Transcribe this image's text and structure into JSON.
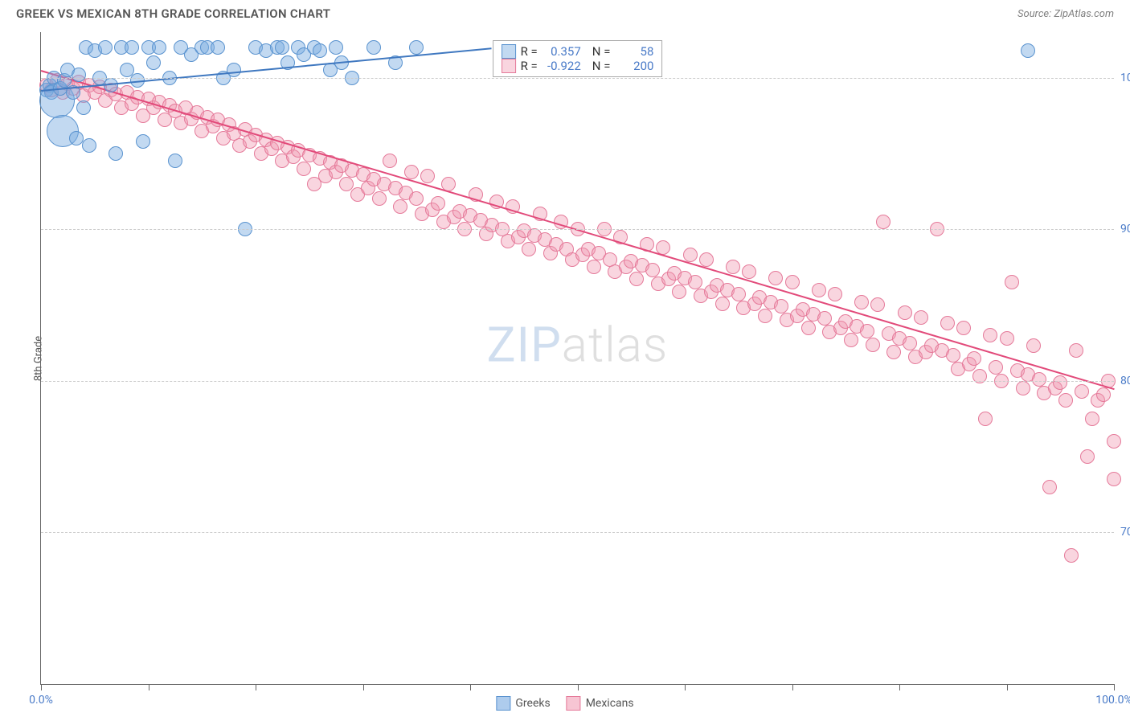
{
  "header": {
    "title": "GREEK VS MEXICAN 8TH GRADE CORRELATION CHART",
    "source_prefix": "Source: ",
    "source": "ZipAtlas.com"
  },
  "ylabel": "8th Grade",
  "watermark": {
    "part1": "ZIP",
    "part2": "atlas"
  },
  "chart": {
    "type": "scatter",
    "xlim": [
      0,
      100
    ],
    "ylim": [
      60,
      103
    ],
    "y_ticks": [
      70,
      80,
      90,
      100
    ],
    "y_tick_labels": [
      "70.0%",
      "80.0%",
      "90.0%",
      "100.0%"
    ],
    "x_ticks": [
      0,
      10,
      20,
      30,
      40,
      50,
      60,
      70,
      80,
      90,
      100
    ],
    "x_tick_labels": {
      "0": "0.0%",
      "100": "100.0%"
    },
    "grid_color": "#cccccc",
    "background_color": "#ffffff",
    "series": [
      {
        "name": "Greeks",
        "fill": "rgba(120,170,225,0.45)",
        "stroke": "#5a93cf",
        "marker_radius": 9,
        "trend": {
          "x1": 0,
          "y1": 99.2,
          "x2": 42,
          "y2": 102.0,
          "color": "#3f78c0",
          "width": 2
        },
        "stats": {
          "R": "0.357",
          "N": "58"
        },
        "points": [
          [
            0.5,
            99.2
          ],
          [
            0.8,
            99.5
          ],
          [
            1.0,
            99.0
          ],
          [
            1.2,
            100.0
          ],
          [
            1.5,
            98.5,
            22
          ],
          [
            1.8,
            99.3
          ],
          [
            2.0,
            96.5,
            20
          ],
          [
            2.2,
            99.8
          ],
          [
            2.5,
            100.5
          ],
          [
            3.0,
            99.0
          ],
          [
            3.3,
            96.0
          ],
          [
            3.5,
            100.2
          ],
          [
            4.0,
            98.0
          ],
          [
            4.2,
            102.0
          ],
          [
            4.5,
            95.5
          ],
          [
            5.0,
            101.8
          ],
          [
            5.5,
            100.0
          ],
          [
            6.0,
            102.0
          ],
          [
            6.5,
            99.5
          ],
          [
            7.0,
            95.0
          ],
          [
            7.5,
            102.0
          ],
          [
            8.0,
            100.5
          ],
          [
            8.5,
            102.0
          ],
          [
            9.0,
            99.8
          ],
          [
            9.5,
            95.8
          ],
          [
            10.0,
            102.0
          ],
          [
            10.5,
            101.0
          ],
          [
            11.0,
            102.0
          ],
          [
            12.0,
            100.0
          ],
          [
            12.5,
            94.5
          ],
          [
            13.0,
            102.0
          ],
          [
            14.0,
            101.5
          ],
          [
            15.0,
            102.0
          ],
          [
            15.5,
            102.0
          ],
          [
            16.5,
            102.0
          ],
          [
            17.0,
            100.0
          ],
          [
            18.0,
            100.5
          ],
          [
            19.0,
            90.0
          ],
          [
            20.0,
            102.0
          ],
          [
            21.0,
            101.8
          ],
          [
            22.0,
            102.0
          ],
          [
            22.5,
            102.0
          ],
          [
            23.0,
            101.0
          ],
          [
            24.0,
            102.0
          ],
          [
            24.5,
            101.5
          ],
          [
            25.5,
            102.0
          ],
          [
            26.0,
            101.8
          ],
          [
            27.0,
            100.5
          ],
          [
            27.5,
            102.0
          ],
          [
            28.0,
            101.0
          ],
          [
            29.0,
            100.0
          ],
          [
            31.0,
            102.0
          ],
          [
            33.0,
            101.0
          ],
          [
            35.0,
            102.0
          ],
          [
            92.0,
            101.8
          ]
        ]
      },
      {
        "name": "Mexicans",
        "fill": "rgba(240,150,175,0.40)",
        "stroke": "#e57a9a",
        "marker_radius": 9,
        "trend": {
          "x1": 0,
          "y1": 100.5,
          "x2": 100,
          "y2": 79.5,
          "color": "#e24a7a",
          "width": 2
        },
        "stats": {
          "R": "-0.922",
          "N": "200"
        },
        "points": [
          [
            0.5,
            99.5
          ],
          [
            1,
            99.2
          ],
          [
            1.5,
            99.8
          ],
          [
            2,
            99.0
          ],
          [
            2.5,
            99.6
          ],
          [
            3,
            99.3
          ],
          [
            3.5,
            99.7
          ],
          [
            4,
            98.8
          ],
          [
            4.5,
            99.5
          ],
          [
            5,
            99.0
          ],
          [
            5.5,
            99.4
          ],
          [
            6,
            98.5
          ],
          [
            6.5,
            99.2
          ],
          [
            7,
            98.9
          ],
          [
            7.5,
            98.0
          ],
          [
            8,
            99.0
          ],
          [
            8.5,
            98.3
          ],
          [
            9,
            98.7
          ],
          [
            9.5,
            97.5
          ],
          [
            10,
            98.6
          ],
          [
            10.5,
            98.0
          ],
          [
            11,
            98.4
          ],
          [
            11.5,
            97.2
          ],
          [
            12,
            98.2
          ],
          [
            12.5,
            97.8
          ],
          [
            13,
            97.0
          ],
          [
            13.5,
            98.0
          ],
          [
            14,
            97.3
          ],
          [
            14.5,
            97.7
          ],
          [
            15,
            96.5
          ],
          [
            15.5,
            97.4
          ],
          [
            16,
            96.8
          ],
          [
            16.5,
            97.2
          ],
          [
            17,
            96.0
          ],
          [
            17.5,
            96.9
          ],
          [
            18,
            96.3
          ],
          [
            18.5,
            95.5
          ],
          [
            19,
            96.6
          ],
          [
            19.5,
            95.8
          ],
          [
            20,
            96.2
          ],
          [
            20.5,
            95.0
          ],
          [
            21,
            95.9
          ],
          [
            21.5,
            95.3
          ],
          [
            22,
            95.7
          ],
          [
            22.5,
            94.5
          ],
          [
            23,
            95.4
          ],
          [
            23.5,
            94.8
          ],
          [
            24,
            95.2
          ],
          [
            24.5,
            94.0
          ],
          [
            25,
            94.9
          ],
          [
            25.5,
            93.0
          ],
          [
            26,
            94.7
          ],
          [
            26.5,
            93.5
          ],
          [
            27,
            94.4
          ],
          [
            27.5,
            93.8
          ],
          [
            28,
            94.2
          ],
          [
            28.5,
            93.0
          ],
          [
            29,
            93.9
          ],
          [
            29.5,
            92.3
          ],
          [
            30,
            93.6
          ],
          [
            30.5,
            92.7
          ],
          [
            31,
            93.3
          ],
          [
            31.5,
            92.0
          ],
          [
            32,
            93.0
          ],
          [
            32.5,
            94.5
          ],
          [
            33,
            92.7
          ],
          [
            33.5,
            91.5
          ],
          [
            34,
            92.4
          ],
          [
            34.5,
            93.8
          ],
          [
            35,
            92.0
          ],
          [
            35.5,
            91.0
          ],
          [
            36,
            93.5
          ],
          [
            36.5,
            91.3
          ],
          [
            37,
            91.7
          ],
          [
            37.5,
            90.5
          ],
          [
            38,
            93.0
          ],
          [
            38.5,
            90.8
          ],
          [
            39,
            91.2
          ],
          [
            39.5,
            90.0
          ],
          [
            40,
            90.9
          ],
          [
            40.5,
            92.3
          ],
          [
            41,
            90.6
          ],
          [
            41.5,
            89.7
          ],
          [
            42,
            90.3
          ],
          [
            42.5,
            91.8
          ],
          [
            43,
            90.0
          ],
          [
            43.5,
            89.2
          ],
          [
            44,
            91.5
          ],
          [
            44.5,
            89.5
          ],
          [
            45,
            89.9
          ],
          [
            45.5,
            88.7
          ],
          [
            46,
            89.6
          ],
          [
            46.5,
            91.0
          ],
          [
            47,
            89.3
          ],
          [
            47.5,
            88.4
          ],
          [
            48,
            89.0
          ],
          [
            48.5,
            90.5
          ],
          [
            49,
            88.7
          ],
          [
            49.5,
            88.0
          ],
          [
            50,
            90.0
          ],
          [
            50.5,
            88.3
          ],
          [
            51,
            88.7
          ],
          [
            51.5,
            87.5
          ],
          [
            52,
            88.4
          ],
          [
            52.5,
            90.0
          ],
          [
            53,
            88.0
          ],
          [
            53.5,
            87.2
          ],
          [
            54,
            89.5
          ],
          [
            54.5,
            87.5
          ],
          [
            55,
            87.9
          ],
          [
            55.5,
            86.7
          ],
          [
            56,
            87.6
          ],
          [
            56.5,
            89.0
          ],
          [
            57,
            87.3
          ],
          [
            57.5,
            86.4
          ],
          [
            58,
            88.8
          ],
          [
            58.5,
            86.7
          ],
          [
            59,
            87.1
          ],
          [
            59.5,
            85.9
          ],
          [
            60,
            86.8
          ],
          [
            60.5,
            88.3
          ],
          [
            61,
            86.5
          ],
          [
            61.5,
            85.6
          ],
          [
            62,
            88.0
          ],
          [
            62.5,
            85.9
          ],
          [
            63,
            86.3
          ],
          [
            63.5,
            85.1
          ],
          [
            64,
            86.0
          ],
          [
            64.5,
            87.5
          ],
          [
            65,
            85.7
          ],
          [
            65.5,
            84.8
          ],
          [
            66,
            87.2
          ],
          [
            66.5,
            85.1
          ],
          [
            67,
            85.5
          ],
          [
            67.5,
            84.3
          ],
          [
            68,
            85.2
          ],
          [
            68.5,
            86.8
          ],
          [
            69,
            84.9
          ],
          [
            69.5,
            84.0
          ],
          [
            70,
            86.5
          ],
          [
            70.5,
            84.3
          ],
          [
            71,
            84.7
          ],
          [
            71.5,
            83.5
          ],
          [
            72,
            84.4
          ],
          [
            72.5,
            86.0
          ],
          [
            73,
            84.1
          ],
          [
            73.5,
            83.2
          ],
          [
            74,
            85.7
          ],
          [
            74.5,
            83.5
          ],
          [
            75,
            83.9
          ],
          [
            75.5,
            82.7
          ],
          [
            76,
            83.6
          ],
          [
            76.5,
            85.2
          ],
          [
            77,
            83.3
          ],
          [
            77.5,
            82.4
          ],
          [
            78,
            85.0
          ],
          [
            78.5,
            90.5
          ],
          [
            79,
            83.1
          ],
          [
            79.5,
            81.9
          ],
          [
            80,
            82.8
          ],
          [
            80.5,
            84.5
          ],
          [
            81,
            82.5
          ],
          [
            81.5,
            81.6
          ],
          [
            82,
            84.2
          ],
          [
            82.5,
            81.9
          ],
          [
            83,
            82.3
          ],
          [
            83.5,
            90.0
          ],
          [
            84,
            82.0
          ],
          [
            84.5,
            83.8
          ],
          [
            85,
            81.7
          ],
          [
            85.5,
            80.8
          ],
          [
            86,
            83.5
          ],
          [
            86.5,
            81.1
          ],
          [
            87,
            81.5
          ],
          [
            87.5,
            80.3
          ],
          [
            88,
            77.5
          ],
          [
            88.5,
            83.0
          ],
          [
            89,
            80.9
          ],
          [
            89.5,
            80.0
          ],
          [
            90,
            82.8
          ],
          [
            90.5,
            86.5
          ],
          [
            91,
            80.7
          ],
          [
            91.5,
            79.5
          ],
          [
            92,
            80.4
          ],
          [
            92.5,
            82.3
          ],
          [
            93,
            80.1
          ],
          [
            93.5,
            79.2
          ],
          [
            94,
            73.0
          ],
          [
            94.5,
            79.5
          ],
          [
            95,
            79.9
          ],
          [
            95.5,
            78.7
          ],
          [
            96,
            68.5
          ],
          [
            96.5,
            82.0
          ],
          [
            97,
            79.3
          ],
          [
            97.5,
            75.0
          ],
          [
            98,
            77.5
          ],
          [
            98.5,
            78.7
          ],
          [
            99,
            79.1
          ],
          [
            99.5,
            80.0
          ],
          [
            100,
            76.0
          ],
          [
            100,
            73.5
          ]
        ]
      }
    ]
  },
  "stats_box": {
    "r_label": "R =",
    "n_label": "N ="
  },
  "footer_legend": {
    "items": [
      {
        "label": "Greeks",
        "fill": "rgba(120,170,225,0.6)",
        "stroke": "#5a93cf"
      },
      {
        "label": "Mexicans",
        "fill": "rgba(240,150,175,0.55)",
        "stroke": "#e57a9a"
      }
    ]
  }
}
